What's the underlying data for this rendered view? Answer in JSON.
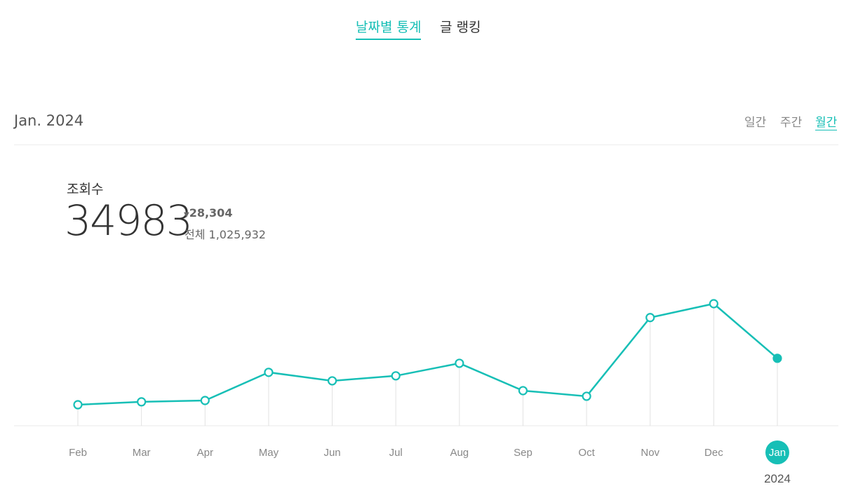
{
  "tabs": [
    {
      "label": "날짜별 통계",
      "active": true
    },
    {
      "label": "글 랭킹",
      "active": false
    }
  ],
  "period": "Jan. 2024",
  "period_toggles": [
    {
      "label": "일간",
      "active": false
    },
    {
      "label": "주간",
      "active": false
    },
    {
      "label": "월간",
      "active": true
    }
  ],
  "stats": {
    "label": "조회수",
    "change": "28,304",
    "total": "전체 1,025,932"
  },
  "chart_data": {
    "type": "line",
    "categories": [
      "Feb",
      "Mar",
      "Apr",
      "May",
      "Jun",
      "Jul",
      "Aug",
      "Sep",
      "Oct",
      "Nov",
      "Dec",
      "Jan"
    ],
    "values": [
      10900,
      12400,
      13100,
      27700,
      23300,
      25900,
      32400,
      18200,
      15300,
      56100,
      63287,
      34983
    ],
    "color": "#17bfb6",
    "highlight_sublabel": "2024"
  }
}
